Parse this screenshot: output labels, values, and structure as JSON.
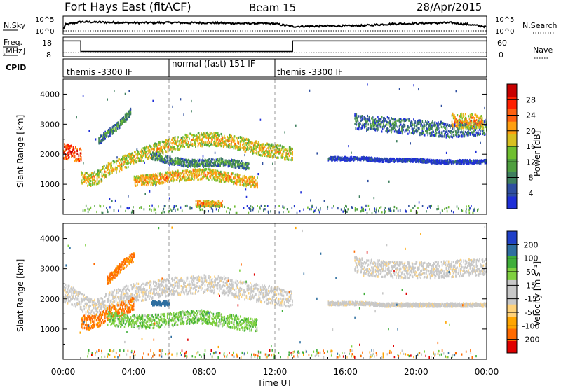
{
  "header": {
    "title": "Fort Hays East (fitACF)",
    "beam": "Beam 15",
    "date": "28/Apr/2015"
  },
  "nsky_panel": {
    "left_label": "N.Sky",
    "right_label": "N.Search",
    "left_ticks": [
      "10^5",
      "10^0"
    ],
    "right_ticks": [
      "10^5",
      "10^0"
    ],
    "series": [
      {
        "x": [
          0,
          0.15,
          1,
          2,
          3,
          4,
          5,
          6,
          7,
          8,
          9,
          10,
          11,
          12,
          13,
          14,
          15,
          16,
          17,
          18,
          19,
          20,
          21,
          22,
          23,
          24
        ],
        "y": [
          0.25,
          0.55,
          0.72,
          0.7,
          0.68,
          0.66,
          0.66,
          0.68,
          0.65,
          0.66,
          0.64,
          0.62,
          0.62,
          0.6,
          0.42,
          0.44,
          0.45,
          0.46,
          0.48,
          0.55,
          0.6,
          0.62,
          0.64,
          0.66,
          0.55,
          0.4
        ]
      }
    ]
  },
  "freq_panel": {
    "left_label_1": "Freq.",
    "left_label_2": "[MHz]",
    "right_label": "Nave",
    "left_ticks": [
      "18",
      "8"
    ],
    "right_ticks": [
      "60",
      "0"
    ],
    "freq_series": {
      "x": [
        0,
        1,
        1,
        13,
        13,
        24
      ],
      "y": [
        17,
        17,
        10.7,
        10.7,
        17,
        17
      ]
    },
    "nave_series": {
      "x": [
        0,
        24
      ],
      "y": [
        12,
        12
      ]
    }
  },
  "cpid_panel": {
    "label": "CPID",
    "segments": [
      {
        "start": 0,
        "end": 6,
        "text": "themis -3300 IF"
      },
      {
        "start": 6,
        "end": 12,
        "text": "normal (fast) 151 IF"
      },
      {
        "start": 12,
        "end": 24,
        "text": "themis -3300 IF"
      }
    ]
  },
  "colors": {
    "power_scale": [
      "#1f2fd8",
      "#2f4fa0",
      "#3f7f5f",
      "#4f9f3f",
      "#6fbf2f",
      "#d8c020",
      "#ff9f10",
      "#ff6010",
      "#ff2000",
      "#c80000"
    ],
    "velocity_scale": [
      "#e00000",
      "#ff6a00",
      "#ffa500",
      "#ffd27a",
      "#c8c8c8",
      "#c8c8c8",
      "#7fd040",
      "#3fae3a",
      "#2f6fa0",
      "#1f3fc8"
    ]
  },
  "chart_data": [
    {
      "type": "heatmap",
      "panel": "power",
      "ylabel": "Slant Range [km]",
      "xlim": [
        0,
        24
      ],
      "ylim": [
        0,
        4500
      ],
      "yticks": [
        1000,
        2000,
        3000,
        4000
      ],
      "colorbar_label": "Power [dB]",
      "colorbar_ticks": [
        "28",
        "24",
        "20",
        "16",
        "12",
        "8",
        "4"
      ],
      "bands": [
        {
          "x": [
            0.0,
            0.5,
            1.0
          ],
          "y": [
            2100,
            2050,
            1950
          ],
          "width": 500,
          "value": 26
        },
        {
          "x": [
            1.0,
            1.5,
            2.0,
            2.5,
            3.0,
            4.0,
            5.0,
            6.0,
            7.0,
            8.0,
            9.0,
            10.0,
            11.0,
            12.0,
            13.0
          ],
          "y": [
            1200,
            1150,
            1250,
            1500,
            1600,
            1900,
            2100,
            2300,
            2450,
            2500,
            2480,
            2350,
            2200,
            2100,
            2000
          ],
          "width": 450,
          "value": 18
        },
        {
          "x": [
            5.0,
            6.0,
            7.0,
            8.0,
            9.0,
            10.0,
            10.5
          ],
          "y": [
            1950,
            1800,
            1700,
            1700,
            1750,
            1650,
            1600
          ],
          "width": 250,
          "value": 10
        },
        {
          "x": [
            4.0,
            5.0,
            6.0,
            7.0,
            8.0,
            9.0,
            10.0,
            11.0
          ],
          "y": [
            1100,
            1150,
            1250,
            1300,
            1350,
            1250,
            1150,
            1050
          ],
          "width": 350,
          "value": 20
        },
        {
          "x": [
            2.0,
            2.5,
            3.0,
            3.5,
            3.8
          ],
          "y": [
            2450,
            2700,
            2900,
            3200,
            3400
          ],
          "width": 250,
          "value": 10
        },
        {
          "x": [
            7.5,
            8.0,
            8.5,
            9.0
          ],
          "y": [
            350,
            350,
            350,
            350
          ],
          "width": 200,
          "value": 20
        },
        {
          "x": [
            16.5,
            17.0,
            18.0,
            19.0,
            20.0,
            21.0,
            22.0,
            23.0,
            24.0
          ],
          "y": [
            3100,
            3050,
            3000,
            2950,
            2900,
            2850,
            2800,
            2850,
            2900
          ],
          "width": 500,
          "value": 8
        },
        {
          "x": [
            22.0,
            23.0,
            23.8
          ],
          "y": [
            3100,
            3100,
            3050
          ],
          "width": 500,
          "value": 20
        },
        {
          "x": [
            15.0,
            16.0,
            17.0,
            18.0,
            19.0,
            20.0,
            21.0,
            22.0,
            23.0,
            24.0
          ],
          "y": [
            1850,
            1850,
            1850,
            1800,
            1800,
            1800,
            1750,
            1750,
            1750,
            1750
          ],
          "width": 120,
          "value": 4
        }
      ]
    },
    {
      "type": "heatmap",
      "panel": "velocity",
      "ylabel": "Slant Range [km]",
      "xlabel": "Time UT",
      "xlim": [
        0,
        24
      ],
      "ylim": [
        0,
        4500
      ],
      "yticks": [
        1000,
        2000,
        3000,
        4000
      ],
      "xticks": [
        "00:00",
        "04:00",
        "08:00",
        "12:00",
        "16:00",
        "20:00",
        "00:00"
      ],
      "colorbar_label": "Velocity [m s⁻¹]",
      "colorbar_ticks": [
        "200",
        "100",
        "50",
        "15",
        "-15",
        "-50",
        "-100",
        "-200"
      ],
      "bands": [
        {
          "x": [
            0.0,
            0.5,
            1.0,
            1.5,
            2.0,
            2.5,
            3.0,
            4.0,
            5.0,
            6.0,
            7.0,
            8.0,
            9.0,
            10.0,
            11.0,
            12.0,
            13.0
          ],
          "y": [
            2200,
            2100,
            1900,
            1700,
            1700,
            1900,
            2050,
            2200,
            2300,
            2400,
            2450,
            2500,
            2450,
            2300,
            2200,
            2100,
            2000
          ],
          "width": 600,
          "value": 0
        },
        {
          "x": [
            1.0,
            1.5,
            2.0,
            2.5,
            3.0,
            3.5,
            4.0
          ],
          "y": [
            1250,
            1200,
            1300,
            1500,
            1600,
            1700,
            1850
          ],
          "width": 450,
          "value": -60
        },
        {
          "x": [
            5.0,
            5.5,
            6.0
          ],
          "y": [
            1850,
            1850,
            1850
          ],
          "width": 150,
          "value": 180
        },
        {
          "x": [
            2.5,
            4.0,
            5.0,
            6.0,
            7.0,
            8.0,
            9.0,
            10.0,
            11.0
          ],
          "y": [
            1350,
            1250,
            1250,
            1300,
            1400,
            1400,
            1300,
            1200,
            1100
          ],
          "width": 450,
          "value": 40
        },
        {
          "x": [
            2.5,
            3.0,
            3.5,
            4.0
          ],
          "y": [
            2600,
            2900,
            3200,
            3400
          ],
          "width": 300,
          "value": -60
        },
        {
          "x": [
            16.5,
            17.0,
            18.0,
            19.0,
            20.0,
            21.0,
            22.0,
            23.0,
            24.0
          ],
          "y": [
            3150,
            3050,
            3000,
            2950,
            2950,
            2950,
            3000,
            3050,
            3050
          ],
          "width": 550,
          "value": 0
        },
        {
          "x": [
            15.0,
            16.0,
            17.0,
            18.0,
            19.0,
            20.0,
            21.0,
            22.0,
            23.0,
            24.0
          ],
          "y": [
            1850,
            1850,
            1850,
            1800,
            1800,
            1800,
            1800,
            1800,
            1800,
            1800
          ],
          "width": 120,
          "value": 0
        }
      ]
    }
  ]
}
